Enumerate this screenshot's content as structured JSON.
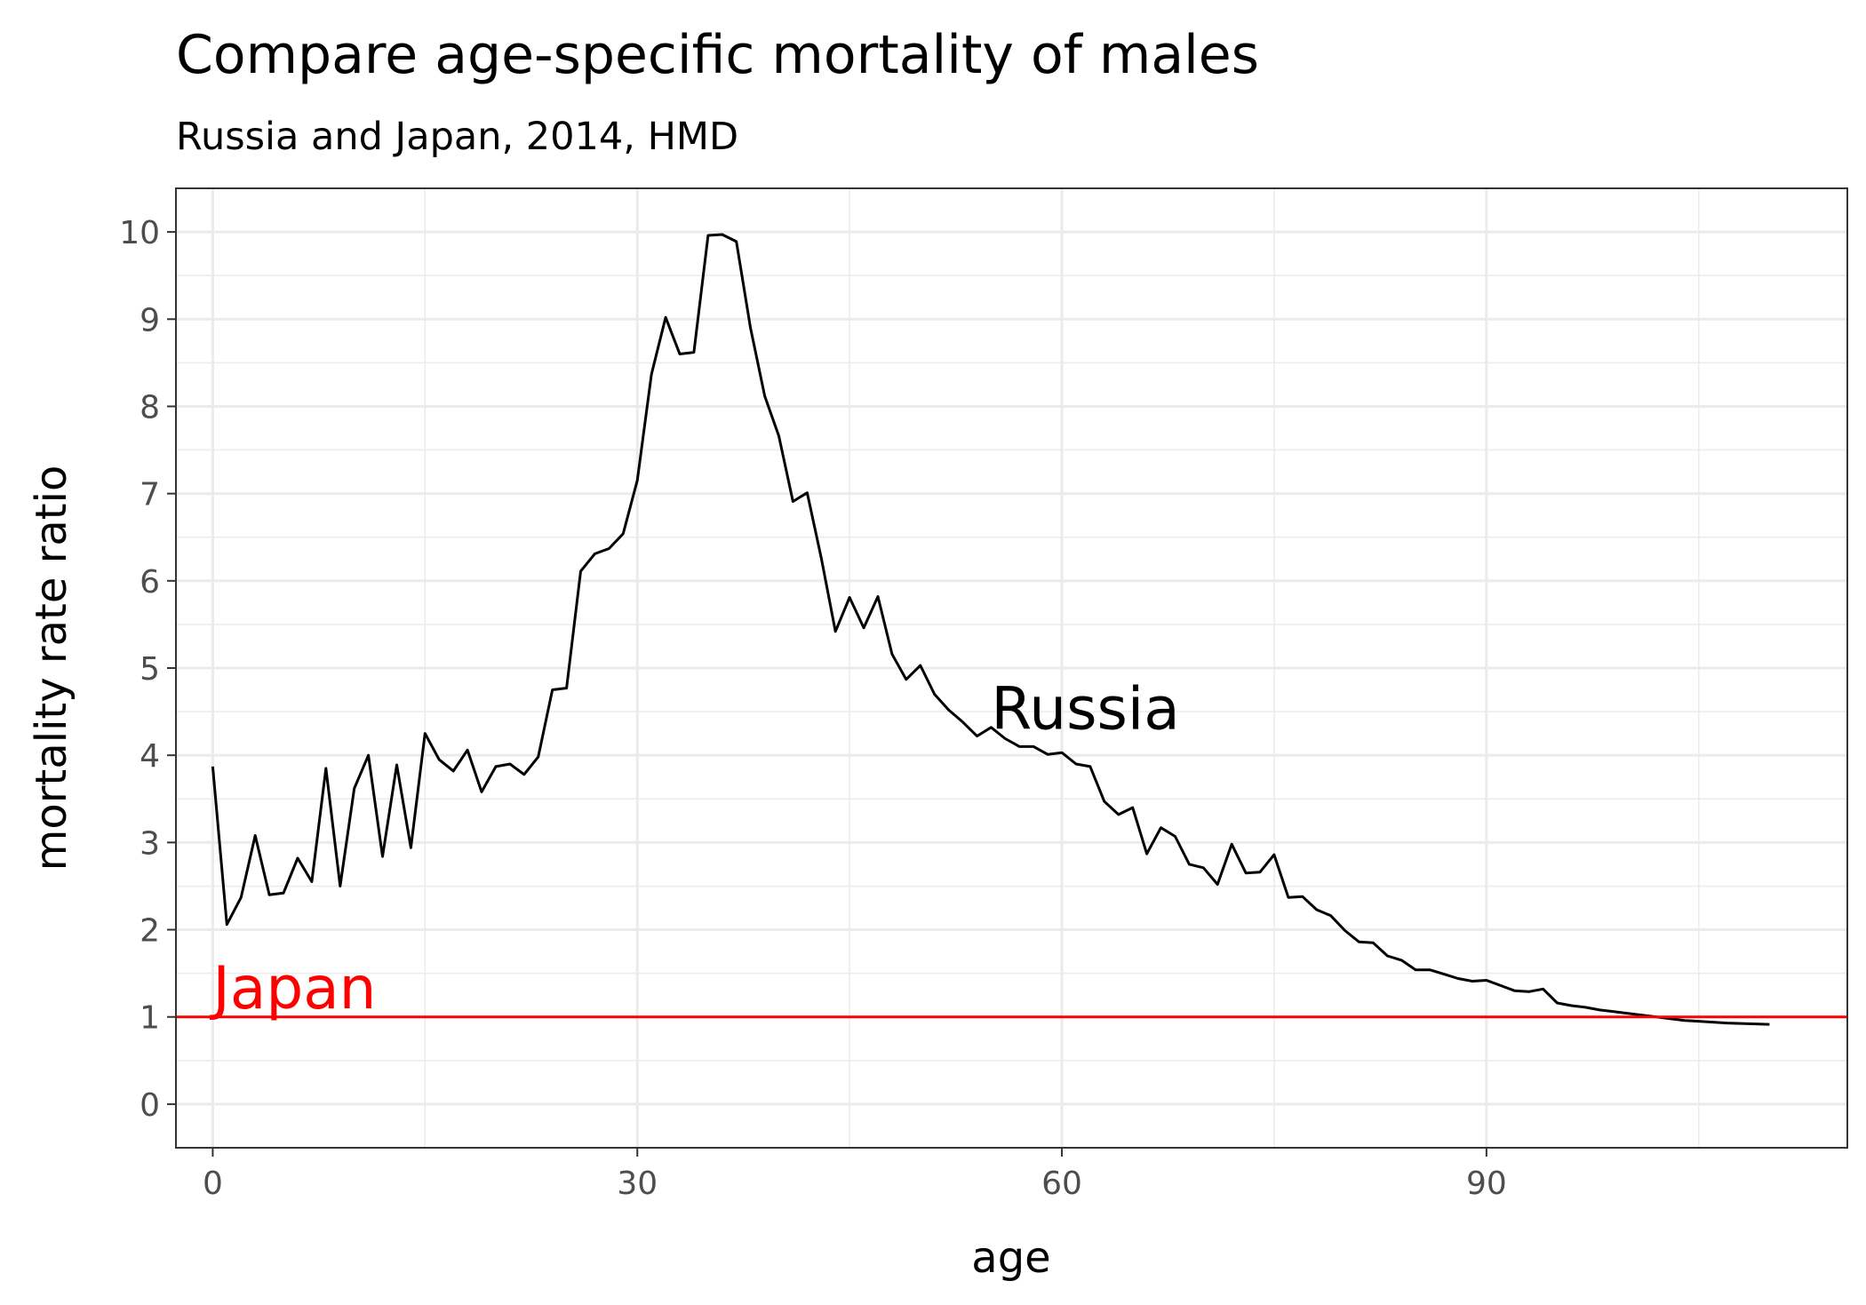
{
  "chart_data": {
    "type": "line",
    "title": "Compare age-specific mortality of males",
    "subtitle": "Russia and Japan, 2014, HMD",
    "xlabel": "age",
    "ylabel": "mortality rate ratio",
    "xlim": [
      -2.6,
      115.5
    ],
    "ylim": [
      -0.5,
      10.5
    ],
    "x_ticks": [
      0,
      30,
      60,
      90
    ],
    "y_ticks": [
      0,
      1,
      2,
      3,
      4,
      5,
      6,
      7,
      8,
      9,
      10
    ],
    "grid": true,
    "legend": "none",
    "series": [
      {
        "name": "Russia",
        "color": "#000000",
        "x": [
          0,
          1,
          2,
          3,
          4,
          5,
          6,
          7,
          8,
          9,
          10,
          11,
          12,
          13,
          14,
          15,
          16,
          17,
          18,
          19,
          20,
          21,
          22,
          23,
          24,
          25,
          26,
          27,
          28,
          29,
          30,
          31,
          32,
          33,
          34,
          35,
          36,
          37,
          38,
          39,
          40,
          41,
          42,
          43,
          44,
          45,
          46,
          47,
          48,
          49,
          50,
          51,
          52,
          53,
          54,
          55,
          56,
          57,
          58,
          59,
          60,
          61,
          62,
          63,
          64,
          65,
          66,
          67,
          68,
          69,
          70,
          71,
          72,
          73,
          74,
          75,
          76,
          77,
          78,
          79,
          80,
          81,
          82,
          83,
          84,
          85,
          86,
          87,
          88,
          89,
          90,
          91,
          92,
          93,
          94,
          95,
          96,
          97,
          98,
          99,
          100,
          101,
          102,
          103,
          104,
          105,
          106,
          107,
          108,
          109,
          110
        ],
        "values": [
          3.87,
          2.06,
          2.37,
          3.08,
          2.4,
          2.42,
          2.82,
          2.55,
          3.85,
          2.5,
          3.62,
          4.0,
          2.84,
          3.89,
          2.94,
          4.25,
          3.95,
          3.82,
          4.06,
          3.58,
          3.87,
          3.9,
          3.78,
          3.98,
          4.75,
          4.77,
          6.11,
          6.31,
          6.37,
          6.54,
          7.15,
          8.37,
          9.02,
          8.6,
          8.62,
          9.96,
          9.97,
          9.89,
          8.9,
          8.12,
          7.66,
          6.91,
          7.01,
          6.26,
          5.42,
          5.81,
          5.46,
          5.82,
          5.16,
          4.87,
          5.03,
          4.7,
          4.52,
          4.38,
          4.22,
          4.32,
          4.19,
          4.1,
          4.1,
          4.01,
          4.03,
          3.9,
          3.87,
          3.47,
          3.32,
          3.4,
          2.87,
          3.17,
          3.07,
          2.75,
          2.71,
          2.52,
          2.98,
          2.65,
          2.66,
          2.86,
          2.37,
          2.38,
          2.23,
          2.16,
          1.99,
          1.86,
          1.85,
          1.7,
          1.65,
          1.54,
          1.54,
          1.49,
          1.44,
          1.41,
          1.42,
          1.36,
          1.3,
          1.29,
          1.32,
          1.16,
          1.13,
          1.11,
          1.08,
          1.06,
          1.04,
          1.02,
          1.0,
          0.98,
          0.96,
          0.95,
          0.94,
          0.93,
          0.925,
          0.92,
          0.915
        ]
      },
      {
        "name": "Japan",
        "color": "#ff0000",
        "type": "hline",
        "value": 1
      }
    ],
    "annotations": [
      {
        "text": "Russia",
        "x": 55,
        "y": 4.3,
        "color": "#000000"
      },
      {
        "text": "Japan",
        "x": 0,
        "y": 1.1,
        "color": "#ff0000"
      }
    ]
  }
}
